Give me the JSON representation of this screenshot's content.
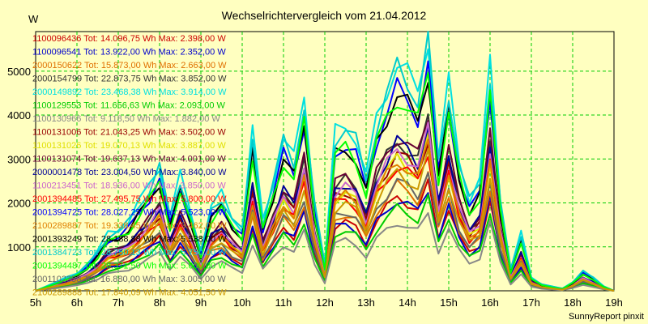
{
  "chart_data": {
    "type": "line",
    "title": "Wechselrichtervergleich vom 21.04.2012",
    "ylabel": "W",
    "footer": "SunnyReport pinxit",
    "x_ticks": [
      "5h",
      "6h",
      "7h",
      "8h",
      "9h",
      "10h",
      "11h",
      "12h",
      "13h",
      "14h",
      "15h",
      "16h",
      "17h",
      "18h",
      "19h"
    ],
    "x_range": [
      5,
      19
    ],
    "y_ticks": [
      1000,
      2000,
      3000,
      4000,
      5000
    ],
    "ylim": [
      0,
      5900
    ],
    "grid": true,
    "series": [
      {
        "name": "1100096436",
        "label": "1100096436 Tot: 14.096,75 Wh Max: 2.398,00 W",
        "color": "#cc0000",
        "scale": 0.41
      },
      {
        "name": "1100096541",
        "label": "1100096541 Tot: 13.922,00 Wh Max: 2.352,00 W",
        "color": "#0000cc",
        "scale": 0.4
      },
      {
        "name": "2000150622",
        "label": "2000150622 Tot: 15.873,00 Wh Max: 2.663,00 W",
        "color": "#e07000",
        "scale": 0.46
      },
      {
        "name": "2000154799",
        "label": "2000154799 Tot: 22.873,75 Wh Max: 3.852,00 W",
        "color": "#333333",
        "scale": 0.66
      },
      {
        "name": "2000149892",
        "label": "2000149892 Tot: 23.468,38 Wh Max: 3.914,00 W",
        "color": "#00e0e0",
        "scale": 1.0
      },
      {
        "name": "1100129553",
        "label": "1100129553 Tot: 11.656,63 Wh Max: 2.093,00 W",
        "color": "#00cc00",
        "scale": 0.36
      },
      {
        "name": "1100130966",
        "label": "1100130966 Tot: 9.118,50 Wh Max: 1.882,00 W",
        "color": "#888888",
        "scale": 0.3
      },
      {
        "name": "1100131006",
        "label": "1100131006 Tot: 21.043,25 Wh Max: 3.502,00 W",
        "color": "#990000",
        "scale": 0.6
      },
      {
        "name": "1100131026",
        "label": "1100131026 Tot: 19.070,13 Wh Max: 3.887,00 W",
        "color": "#e0e000",
        "scale": 0.58
      },
      {
        "name": "1100131074",
        "label": "1100131074 Tot: 19.637,13 Wh Max: 4.001,00 W",
        "color": "#660033",
        "scale": 0.68
      },
      {
        "name": "2000001478",
        "label": "2000001478 Tot: 23.004,50 Wh Max: 3.840,00 W",
        "color": "#000099",
        "scale": 0.65
      },
      {
        "name": "1100213451",
        "label": "1100213451 Tot: 18.936,00 Wh Max: 3.850,00 W",
        "color": "#cc66cc",
        "scale": 0.62
      },
      {
        "name": "2001394485",
        "label": "2001394485 Tot: 27.495,75 Wh Max: 5.800,00 W",
        "color": "#ff0000",
        "scale": 0.55
      },
      {
        "name": "2001394725",
        "label": "2001394725 Tot: 28.027,25 Wh Max: 5.523,00 W",
        "color": "#0000ff",
        "scale": 0.88
      },
      {
        "name": "2100289887",
        "label": "2100289887 Tot: 19.338,45 Wh Max: 3.462,00 W",
        "color": "#e08000",
        "scale": 0.57
      },
      {
        "name": "2001393249",
        "label": "2001393249 Tot: 28.188,88 Wh Max: 5.538,00 W",
        "color": "#000000",
        "scale": 0.86
      },
      {
        "name": "2001384723",
        "label": "2001384723 Tot: 28.750,13 Wh Max: 5.750,00 W",
        "color": "#00cccc",
        "scale": 0.97
      },
      {
        "name": "2001394487",
        "label": "2001394487 Tot: 28.371,50 Wh Max: 5.600,00 W",
        "color": "#00ff00",
        "scale": 0.85
      },
      {
        "name": "2001102358",
        "label": "2001102358 Tot: 16.880,00 Wh Max: 3.005,00 W",
        "color": "#666666",
        "scale": 0.48
      },
      {
        "name": "2100289888",
        "label": "2100289888 Tot: 17.840,09 Wh Max: 4.051,50 W",
        "color": "#cc9900",
        "scale": 0.52
      }
    ],
    "base_profile": {
      "x": [
        5.0,
        5.25,
        5.5,
        5.75,
        6.0,
        6.25,
        6.5,
        6.75,
        7.0,
        7.25,
        7.5,
        7.75,
        8.0,
        8.25,
        8.5,
        8.75,
        9.0,
        9.25,
        9.5,
        9.75,
        10.0,
        10.25,
        10.5,
        10.75,
        11.0,
        11.25,
        11.5,
        11.75,
        12.0,
        12.25,
        12.5,
        12.75,
        13.0,
        13.25,
        13.5,
        13.75,
        14.0,
        14.25,
        14.5,
        14.75,
        15.0,
        15.25,
        15.5,
        15.75,
        16.0,
        16.25,
        16.5,
        16.75,
        17.0,
        17.25,
        17.5,
        17.75,
        18.0,
        18.25,
        18.5,
        18.75,
        19.0
      ],
      "y": [
        0,
        100,
        200,
        300,
        400,
        600,
        900,
        1300,
        1400,
        1600,
        2000,
        2400,
        2900,
        1700,
        2600,
        1800,
        900,
        1900,
        2200,
        1700,
        1400,
        3600,
        1600,
        2500,
        3500,
        3000,
        4400,
        2000,
        600,
        3600,
        3800,
        3500,
        2600,
        3900,
        4600,
        5200,
        4900,
        4500,
        5850,
        3000,
        4700,
        3000,
        2100,
        2500,
        5150,
        2100,
        500,
        1300,
        300,
        150,
        100,
        50,
        200,
        450,
        300,
        100,
        0
      ]
    }
  }
}
